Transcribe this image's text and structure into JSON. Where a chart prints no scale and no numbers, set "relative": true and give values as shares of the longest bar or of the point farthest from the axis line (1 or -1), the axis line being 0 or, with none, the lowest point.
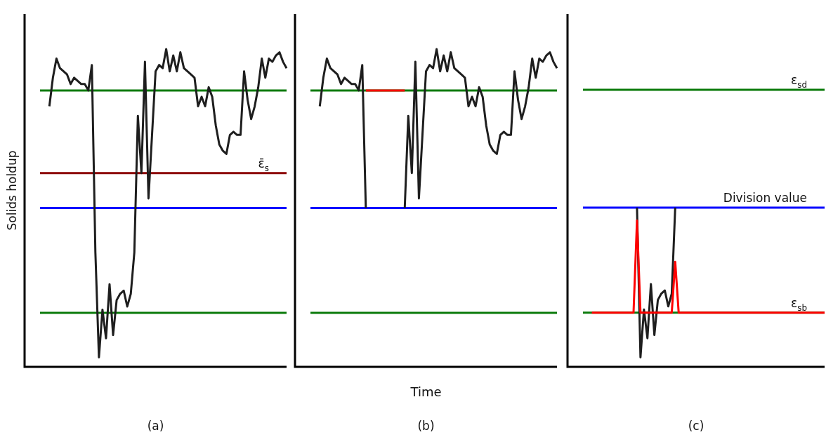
{
  "chart_data": [
    {
      "type": "line",
      "title": "(a)",
      "ylabel": "Solids holdup",
      "relative": true,
      "marker": "none",
      "categories": [
        null,
        null,
        null,
        null,
        null,
        null,
        null,
        null,
        null,
        null,
        null,
        null,
        null,
        null,
        null,
        null,
        null,
        null,
        null,
        null,
        null,
        null,
        null,
        null,
        null,
        null,
        null,
        null,
        null,
        null,
        null,
        null,
        null,
        null,
        null,
        null,
        null,
        null,
        null,
        null,
        null,
        null,
        null,
        null,
        null,
        null,
        null,
        null,
        null,
        null,
        null,
        null,
        null,
        null,
        null,
        null,
        null,
        null,
        null,
        null,
        null,
        null,
        null,
        null,
        null,
        null,
        null,
        null,
        null,
        null,
        null,
        null,
        null,
        null,
        null
      ],
      "series": [
        {
          "color": "#1e1e1e",
          "values": [
            null,
            null,
            null,
            null,
            null,
            null,
            null,
            0.82,
            0.91,
            0.97,
            0.94,
            0.93,
            0.92,
            0.89,
            0.91,
            0.9,
            0.89,
            0.89,
            0.87,
            0.95,
            0.36,
            0.03,
            0.18,
            0.09,
            0.26,
            0.1,
            0.21,
            0.23,
            0.24,
            0.19,
            0.23,
            0.36,
            0.79,
            0.61,
            0.96,
            0.53,
            0.73,
            0.93,
            0.95,
            0.94,
            1.0,
            0.93,
            0.98,
            0.93,
            0.99,
            0.94,
            0.93,
            0.92,
            0.91,
            0.82,
            0.85,
            0.82,
            0.88,
            0.85,
            0.76,
            0.7,
            0.68,
            0.67,
            0.73,
            0.74,
            0.73,
            0.73,
            0.93,
            0.84,
            0.78,
            0.82,
            0.88,
            0.97,
            0.91,
            0.97,
            0.96,
            0.98,
            0.99,
            0.96,
            0.94
          ]
        }
      ],
      "ref_lines": [
        {
          "axis": "y",
          "value": 0.87,
          "color": "#0a7a0a"
        },
        {
          "axis": "y",
          "value": 0.61,
          "color": "#8b0000",
          "label": "ε̄$_{s}$"
        },
        {
          "axis": "y",
          "value": 0.5,
          "color": "#0000ff"
        },
        {
          "axis": "y",
          "value": 0.17,
          "color": "#0a7a0a"
        }
      ]
    },
    {
      "type": "line",
      "title": "(b)",
      "xlabel": "Time",
      "relative": true,
      "marker": "none",
      "categories": [
        null,
        null,
        null,
        null,
        null,
        null,
        null,
        null,
        null,
        null,
        null,
        null,
        null,
        null,
        null,
        null,
        null,
        null,
        null,
        null,
        null,
        null,
        null,
        null,
        null,
        null,
        null,
        null,
        null,
        null,
        null,
        null,
        null,
        null,
        null,
        null,
        null,
        null,
        null,
        null,
        null,
        null,
        null,
        null,
        null,
        null,
        null,
        null,
        null,
        null,
        null,
        null,
        null,
        null,
        null,
        null,
        null,
        null,
        null,
        null,
        null,
        null,
        null,
        null,
        null,
        null,
        null,
        null,
        null,
        null,
        null,
        null,
        null,
        null,
        null
      ],
      "series": [
        {
          "color": "#1e1e1e",
          "values": [
            null,
            null,
            null,
            null,
            null,
            null,
            null,
            0.82,
            0.91,
            0.97,
            0.94,
            0.93,
            0.92,
            0.89,
            0.91,
            0.9,
            0.89,
            0.89,
            0.87,
            0.95,
            0.5,
            null,
            null,
            null,
            null,
            null,
            null,
            null,
            null,
            null,
            null,
            0.5,
            0.79,
            0.61,
            0.96,
            0.53,
            0.73,
            0.93,
            0.95,
            0.94,
            1.0,
            0.93,
            0.98,
            0.93,
            0.99,
            0.94,
            0.93,
            0.92,
            0.91,
            0.82,
            0.85,
            0.82,
            0.88,
            0.85,
            0.76,
            0.7,
            0.68,
            0.67,
            0.73,
            0.74,
            0.73,
            0.73,
            0.93,
            0.84,
            0.78,
            0.82,
            0.88,
            0.97,
            0.91,
            0.97,
            0.96,
            0.98,
            0.99,
            0.96,
            0.94
          ]
        },
        {
          "color": "#ff0000",
          "values": [
            null,
            null,
            null,
            null,
            null,
            null,
            null,
            null,
            null,
            null,
            null,
            null,
            null,
            null,
            null,
            null,
            null,
            null,
            null,
            null,
            0.87,
            0.87,
            0.87,
            0.87,
            0.87,
            0.87,
            0.87,
            0.87,
            0.87,
            0.87,
            0.87,
            0.87,
            null,
            null,
            null,
            null,
            null,
            null,
            null,
            null,
            null,
            null,
            null,
            null,
            null,
            null,
            null,
            null,
            null,
            null,
            null,
            null,
            null,
            null,
            null,
            null,
            null,
            null,
            null,
            null,
            null,
            null,
            null,
            null,
            null,
            null,
            null,
            null,
            null,
            null,
            null,
            null,
            null,
            null,
            null
          ]
        }
      ],
      "ref_lines": [
        {
          "axis": "y",
          "value": 0.87,
          "color": "#0a7a0a"
        },
        {
          "axis": "y",
          "value": 0.5,
          "color": "#0000ff"
        },
        {
          "axis": "y",
          "value": 0.17,
          "color": "#0a7a0a"
        }
      ]
    },
    {
      "type": "line",
      "title": "(c)",
      "relative": true,
      "marker": "none",
      "categories": [
        null,
        null,
        null,
        null,
        null,
        null,
        null,
        null,
        null,
        null,
        null,
        null,
        null,
        null,
        null,
        null,
        null,
        null,
        null,
        null,
        null,
        null,
        null,
        null,
        null,
        null,
        null,
        null,
        null,
        null,
        null,
        null,
        null,
        null,
        null,
        null,
        null,
        null,
        null,
        null,
        null,
        null,
        null,
        null,
        null,
        null,
        null,
        null,
        null,
        null,
        null,
        null,
        null,
        null,
        null,
        null,
        null,
        null,
        null,
        null,
        null,
        null,
        null,
        null,
        null,
        null,
        null,
        null,
        null,
        null,
        null,
        null,
        null,
        null,
        null
      ],
      "series": [
        {
          "color": "#ff0000",
          "values": [
            null,
            null,
            null,
            null,
            null,
            null,
            null,
            0.34,
            0.34,
            0.34,
            0.34,
            0.34,
            0.34,
            0.34,
            0.34,
            0.34,
            0.34,
            0.34,
            0.34,
            0.34,
            0.92,
            0.34,
            0.34,
            0.34,
            0.34,
            0.34,
            0.34,
            0.34,
            0.34,
            0.34,
            0.34,
            0.66,
            0.34,
            0.34,
            0.34,
            0.34,
            0.34,
            0.34,
            0.34,
            0.34,
            0.34,
            0.34,
            0.34,
            0.34,
            0.34,
            0.34,
            0.34,
            0.34,
            0.34,
            0.34,
            0.34,
            0.34,
            0.34,
            0.34,
            0.34,
            0.34,
            0.34,
            0.34,
            0.34,
            0.34,
            0.34,
            0.34,
            0.34,
            0.34,
            0.34,
            0.34,
            0.34,
            0.34,
            0.34,
            0.34,
            0.34,
            0.34,
            0.34,
            0.34,
            0.34
          ]
        },
        {
          "color": "#1e1e1e",
          "values": [
            null,
            null,
            null,
            null,
            null,
            null,
            null,
            null,
            null,
            null,
            null,
            null,
            null,
            null,
            null,
            null,
            null,
            null,
            null,
            null,
            1.0,
            0.06,
            0.36,
            0.18,
            0.52,
            0.2,
            0.42,
            0.46,
            0.48,
            0.38,
            0.46,
            1.0,
            null,
            null,
            null,
            null,
            null,
            null,
            null,
            null,
            null,
            null,
            null,
            null,
            null,
            null,
            null,
            null,
            null,
            null,
            null,
            null,
            null,
            null,
            null,
            null,
            null,
            null,
            null,
            null,
            null,
            null,
            null,
            null,
            null,
            null,
            null,
            null,
            null,
            null,
            null,
            null,
            null,
            null,
            null
          ]
        }
      ],
      "ref_lines": [
        {
          "axis": "y",
          "value": 1.74,
          "color": "#0a7a0a",
          "label": "ε$_{sd}$"
        },
        {
          "axis": "y",
          "value": 1.0,
          "color": "#0000ff",
          "label": "Division value"
        },
        {
          "axis": "y",
          "value": 0.34,
          "color": "#0a7a0a",
          "label": "ε$_{sb}$"
        }
      ]
    }
  ]
}
